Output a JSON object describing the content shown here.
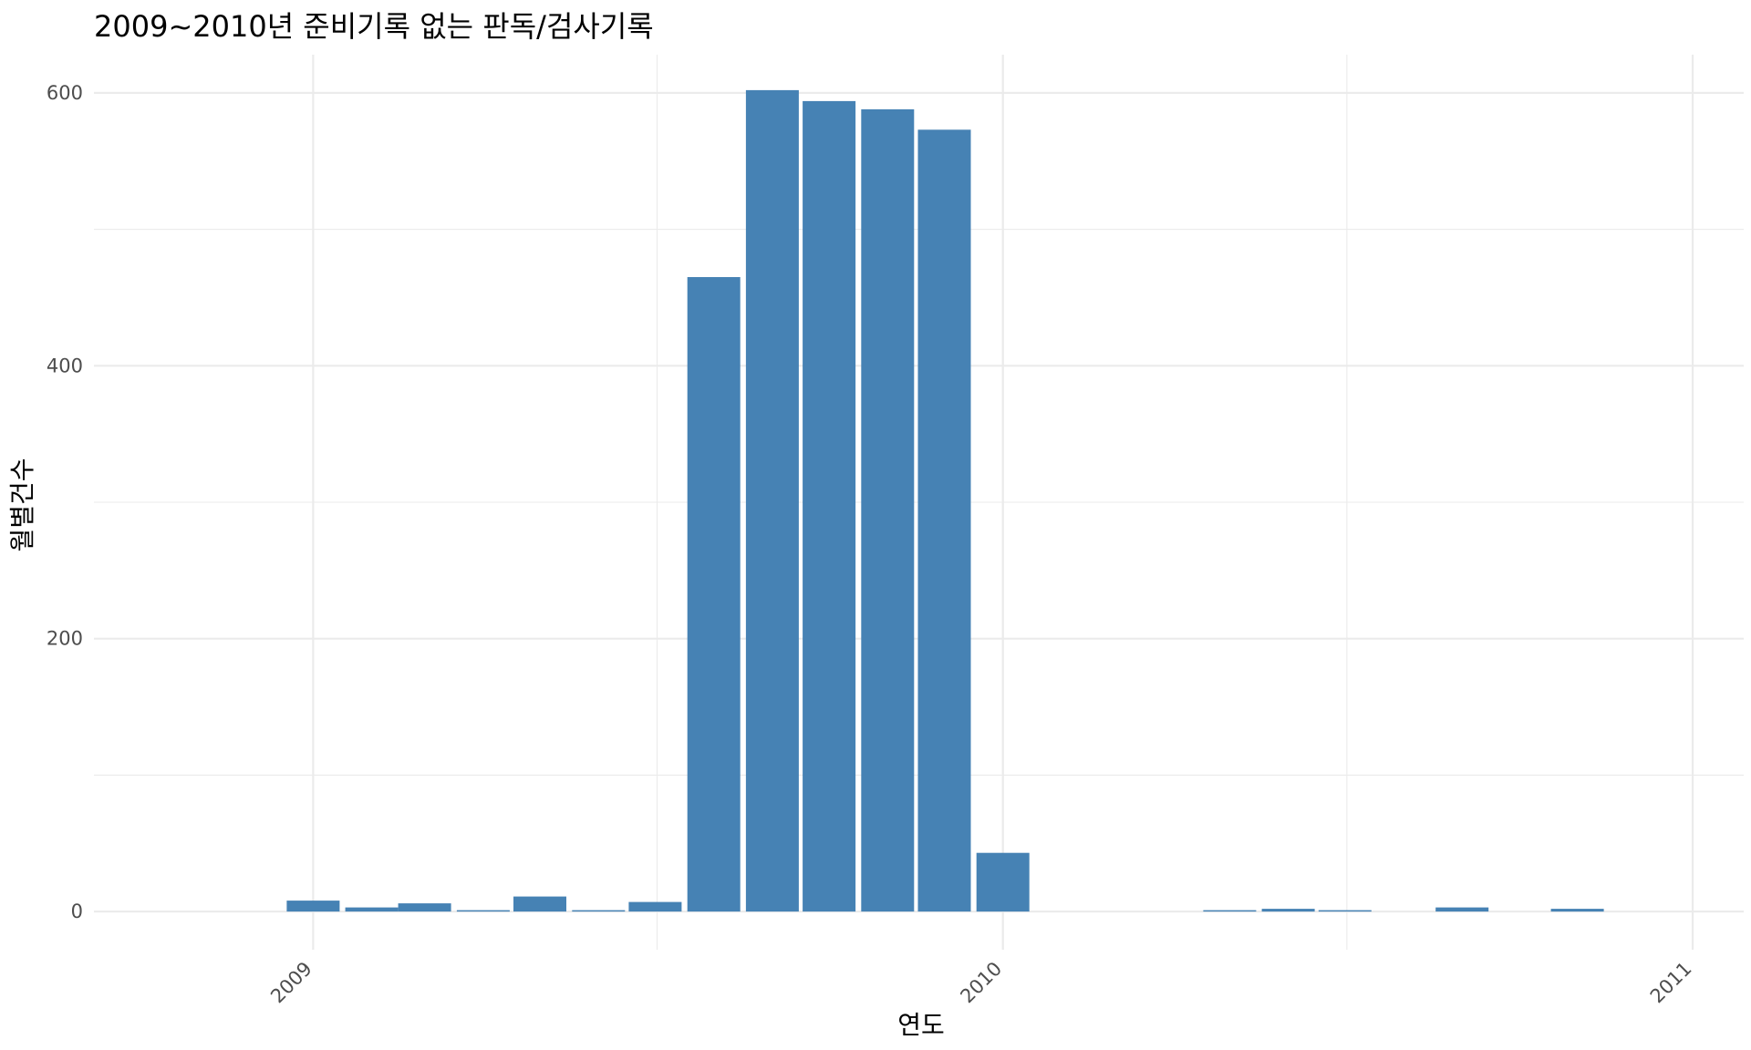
{
  "chart_data": {
    "type": "bar",
    "title": "2009~2010년 준비기록 없는 판독/검사기록",
    "xlabel": "연도",
    "ylabel": "월별건수",
    "ylim": [
      -28,
      628
    ],
    "xlim": [
      "2008-09-07",
      "2011-01-28"
    ],
    "y_ticks": [
      0,
      200,
      400,
      600
    ],
    "y_minor_ticks": [
      100,
      300,
      500
    ],
    "x_ticks": [
      {
        "date": "2009-01-01",
        "label": "2009"
      },
      {
        "date": "2010-01-01",
        "label": "2010"
      },
      {
        "date": "2011-01-01",
        "label": "2011"
      }
    ],
    "x_minor_ticks": [
      "2009-07-02",
      "2010-07-02"
    ],
    "grid": true,
    "bar_color": "#4682B4",
    "series": [
      {
        "values": [
          {
            "x": "2009-01-01",
            "y": 8
          },
          {
            "x": "2009-02-01",
            "y": 3
          },
          {
            "x": "2009-03-01",
            "y": 6
          },
          {
            "x": "2009-04-01",
            "y": 1
          },
          {
            "x": "2009-05-01",
            "y": 11
          },
          {
            "x": "2009-06-01",
            "y": 1
          },
          {
            "x": "2009-07-01",
            "y": 7
          },
          {
            "x": "2009-08-01",
            "y": 465
          },
          {
            "x": "2009-09-01",
            "y": 602
          },
          {
            "x": "2009-10-01",
            "y": 594
          },
          {
            "x": "2009-11-01",
            "y": 588
          },
          {
            "x": "2009-12-01",
            "y": 573
          },
          {
            "x": "2010-01-01",
            "y": 43
          },
          {
            "x": "2010-05-01",
            "y": 1
          },
          {
            "x": "2010-06-01",
            "y": 2
          },
          {
            "x": "2010-07-01",
            "y": 1
          },
          {
            "x": "2010-09-01",
            "y": 3
          },
          {
            "x": "2010-11-01",
            "y": 2
          }
        ]
      }
    ]
  }
}
